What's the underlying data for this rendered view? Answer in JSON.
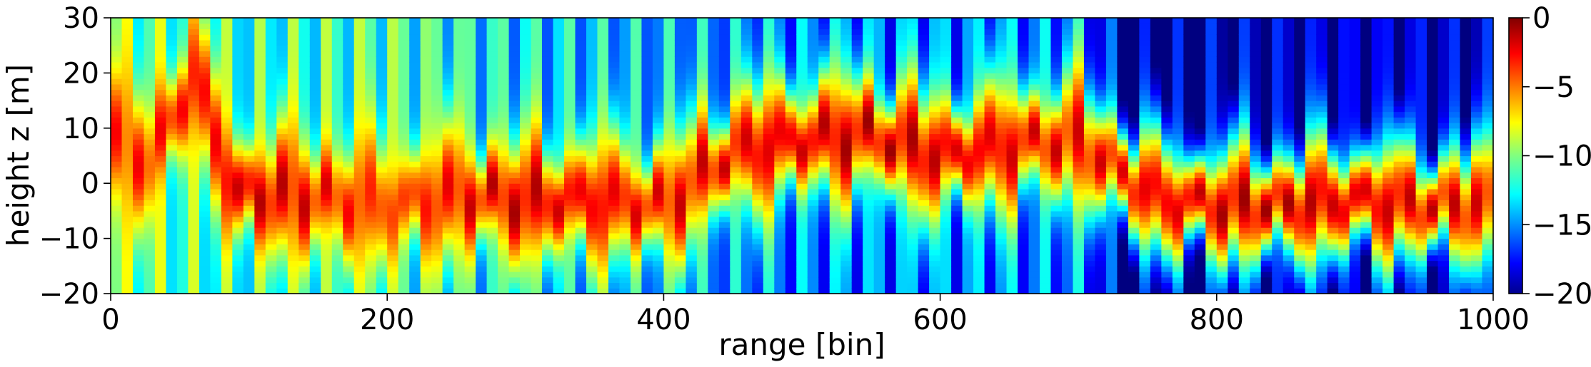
{
  "chart_data": {
    "type": "heatmap",
    "title": "",
    "xlabel": "range [bin]",
    "ylabel": "height z [m]",
    "xlim": [
      0,
      1000
    ],
    "ylim": [
      -20,
      30
    ],
    "x_ticks": [
      0,
      200,
      400,
      600,
      800,
      1000
    ],
    "x_tick_labels": [
      "0",
      "200",
      "400",
      "600",
      "800",
      "1000"
    ],
    "y_ticks": [
      30,
      20,
      10,
      0,
      -10,
      -20
    ],
    "y_tick_labels": [
      "30",
      "20",
      "10",
      "0",
      "−10",
      "−20"
    ],
    "colormap": "jet",
    "colorbar": {
      "range": [
        -20,
        0
      ],
      "ticks": [
        0,
        -5,
        -10,
        -15,
        -20
      ],
      "tick_labels": [
        "0",
        "−5",
        "−10",
        "−15",
        "−20"
      ]
    },
    "grid": false,
    "ridge_center_height": {
      "x": [
        0,
        30,
        60,
        90,
        130,
        170,
        210,
        250,
        300,
        350,
        400,
        450,
        500,
        550,
        600,
        650,
        700,
        730,
        760,
        800,
        850,
        900,
        950,
        1000
      ],
      "z": [
        8,
        4,
        20,
        -2,
        -2,
        -3,
        -4,
        -2,
        -3,
        -3,
        -4,
        6,
        8,
        9,
        5,
        7,
        8,
        2,
        -3,
        -4,
        -4,
        -3,
        -4,
        -4
      ]
    },
    "ridge_peak_level": {
      "x": [
        0,
        100,
        200,
        300,
        400,
        500,
        600,
        700,
        800,
        900,
        1000
      ],
      "value": [
        -4,
        -2,
        -4,
        -2,
        -3,
        -2,
        -2,
        -3,
        -2,
        -2,
        -3
      ]
    },
    "background_level": {
      "x": [
        0,
        100,
        200,
        300,
        400,
        500,
        600,
        700,
        740,
        800,
        900,
        1000
      ],
      "value": [
        -10,
        -12,
        -11,
        -13,
        -14,
        -15,
        -15,
        -15,
        -20,
        -19,
        -19,
        -19
      ]
    }
  }
}
